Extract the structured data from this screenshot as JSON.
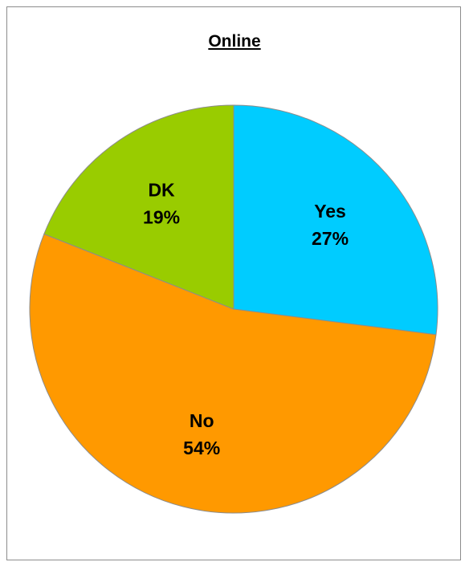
{
  "chart_data": {
    "type": "pie",
    "title": "Online",
    "slices": [
      {
        "label": "Yes",
        "value": 27,
        "value_label": "27%",
        "color": "#00CCFF"
      },
      {
        "label": "No",
        "value": 54,
        "value_label": "54%",
        "color": "#FF9900"
      },
      {
        "label": "DK",
        "value": 19,
        "value_label": "19%",
        "color": "#99CC00"
      }
    ],
    "start_angle": "12 o'clock, clockwise",
    "legend": "none"
  }
}
